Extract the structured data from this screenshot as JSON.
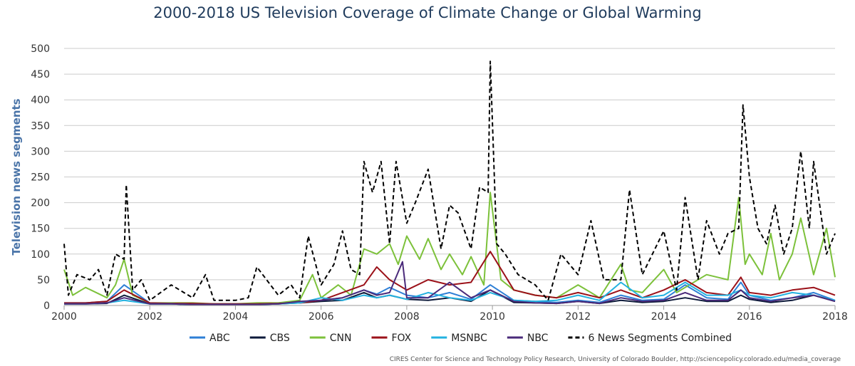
{
  "chart_data": {
    "type": "line",
    "title": "2000-2018 US Television Coverage of Climate Change or Global Warming",
    "ylabel": "Television news segments",
    "xlabel": "",
    "xlim": [
      2000,
      2018
    ],
    "ylim": [
      0,
      500
    ],
    "x_ticks": [
      "2000",
      "2002",
      "2004",
      "2006",
      "2008",
      "2010",
      "2012",
      "2014",
      "2016",
      "2018"
    ],
    "y_ticks": [
      "0",
      "50",
      "100",
      "150",
      "200",
      "250",
      "300",
      "350",
      "400",
      "450",
      "500"
    ],
    "grid": "horizontal",
    "legend_position": "bottom",
    "credit": "CIRES Center for Science and Technology Policy Research, University of Colorado Boulder, http://sciencepolicy.colorado.edu/media_coverage",
    "series": [
      {
        "name": "ABC",
        "color": "#2e7fd6",
        "dashed": false,
        "x": [
          2000.0,
          2000.5,
          2001.0,
          2001.4,
          2002.0,
          2002.5,
          2003.0,
          2003.5,
          2004.0,
          2004.5,
          2005.0,
          2005.5,
          2006.0,
          2006.5,
          2007.0,
          2007.3,
          2007.6,
          2008.0,
          2008.5,
          2009.0,
          2009.5,
          2009.95,
          2010.5,
          2011.0,
          2011.5,
          2012.0,
          2012.5,
          2013.0,
          2013.5,
          2014.0,
          2014.5,
          2015.0,
          2015.5,
          2015.8,
          2016.0,
          2016.5,
          2017.0,
          2017.5,
          2018.0
        ],
        "y": [
          5,
          5,
          8,
          40,
          5,
          4,
          4,
          3,
          3,
          3,
          4,
          6,
          10,
          15,
          30,
          22,
          35,
          20,
          15,
          25,
          12,
          40,
          10,
          8,
          6,
          10,
          6,
          20,
          10,
          12,
          40,
          15,
          12,
          45,
          20,
          10,
          15,
          25,
          10
        ]
      },
      {
        "name": "CBS",
        "color": "#0d1a3a",
        "dashed": false,
        "x": [
          2000.0,
          2000.5,
          2001.0,
          2001.4,
          2002.0,
          2002.5,
          2003.0,
          2003.5,
          2004.0,
          2004.5,
          2005.0,
          2005.5,
          2006.0,
          2006.5,
          2007.0,
          2007.3,
          2007.6,
          2008.0,
          2008.5,
          2009.0,
          2009.5,
          2009.95,
          2010.5,
          2011.0,
          2011.5,
          2012.0,
          2012.5,
          2013.0,
          2013.5,
          2014.0,
          2014.5,
          2015.0,
          2015.5,
          2015.8,
          2016.0,
          2016.5,
          2017.0,
          2017.5,
          2018.0
        ],
        "y": [
          3,
          3,
          4,
          20,
          3,
          3,
          2,
          2,
          2,
          2,
          3,
          5,
          8,
          10,
          25,
          15,
          20,
          12,
          10,
          15,
          8,
          30,
          6,
          5,
          4,
          8,
          4,
          10,
          6,
          8,
          15,
          8,
          8,
          20,
          12,
          6,
          10,
          20,
          8
        ]
      },
      {
        "name": "CNN",
        "color": "#7cc13a",
        "dashed": false,
        "x": [
          2000.0,
          2000.2,
          2000.5,
          2001.0,
          2001.2,
          2001.4,
          2001.6,
          2002.0,
          2002.5,
          2003.0,
          2003.5,
          2004.0,
          2004.5,
          2005.0,
          2005.5,
          2005.8,
          2006.0,
          2006.4,
          2006.7,
          2007.0,
          2007.3,
          2007.6,
          2007.8,
          2008.0,
          2008.3,
          2008.5,
          2008.8,
          2009.0,
          2009.3,
          2009.5,
          2009.8,
          2009.95,
          2010.2,
          2010.5,
          2011.0,
          2011.5,
          2012.0,
          2012.3,
          2012.5,
          2013.0,
          2013.2,
          2013.5,
          2014.0,
          2014.3,
          2014.5,
          2015.0,
          2015.5,
          2015.75,
          2015.9,
          2016.0,
          2016.3,
          2016.5,
          2016.7,
          2017.0,
          2017.2,
          2017.5,
          2017.8,
          2018.0
        ],
        "y": [
          70,
          20,
          35,
          15,
          40,
          90,
          20,
          5,
          5,
          5,
          3,
          3,
          5,
          5,
          10,
          60,
          15,
          40,
          20,
          110,
          100,
          120,
          80,
          135,
          90,
          130,
          70,
          100,
          60,
          95,
          40,
          220,
          50,
          30,
          20,
          15,
          40,
          25,
          15,
          80,
          30,
          25,
          70,
          25,
          35,
          60,
          50,
          210,
          80,
          100,
          60,
          140,
          50,
          100,
          170,
          60,
          150,
          55
        ]
      },
      {
        "name": "FOX",
        "color": "#9b1119",
        "dashed": false,
        "x": [
          2000.0,
          2000.5,
          2001.0,
          2001.4,
          2002.0,
          2002.5,
          2003.0,
          2003.5,
          2004.0,
          2004.5,
          2005.0,
          2005.5,
          2006.0,
          2006.5,
          2007.0,
          2007.3,
          2007.6,
          2008.0,
          2008.5,
          2009.0,
          2009.5,
          2009.95,
          2010.5,
          2011.0,
          2011.5,
          2012.0,
          2012.5,
          2013.0,
          2013.5,
          2014.0,
          2014.5,
          2015.0,
          2015.5,
          2015.8,
          2016.0,
          2016.5,
          2017.0,
          2017.5,
          2018.0
        ],
        "y": [
          5,
          5,
          8,
          30,
          5,
          4,
          4,
          3,
          3,
          3,
          4,
          5,
          10,
          25,
          40,
          75,
          50,
          30,
          50,
          40,
          45,
          105,
          30,
          20,
          15,
          25,
          15,
          30,
          15,
          30,
          50,
          25,
          20,
          55,
          25,
          20,
          30,
          35,
          20
        ]
      },
      {
        "name": "MSNBC",
        "color": "#23b2e0",
        "dashed": false,
        "x": [
          2000.0,
          2000.5,
          2001.0,
          2001.4,
          2002.0,
          2002.5,
          2003.0,
          2003.5,
          2004.0,
          2004.5,
          2005.0,
          2005.5,
          2006.0,
          2006.5,
          2007.0,
          2007.3,
          2007.6,
          2008.0,
          2008.5,
          2009.0,
          2009.5,
          2009.95,
          2010.5,
          2011.0,
          2011.5,
          2012.0,
          2012.5,
          2013.0,
          2013.5,
          2014.0,
          2014.5,
          2015.0,
          2015.5,
          2015.8,
          2016.0,
          2016.5,
          2017.0,
          2017.5,
          2018.0
        ],
        "y": [
          3,
          3,
          5,
          10,
          3,
          3,
          2,
          2,
          2,
          2,
          3,
          5,
          15,
          10,
          20,
          15,
          20,
          12,
          25,
          15,
          10,
          25,
          10,
          8,
          10,
          20,
          10,
          45,
          15,
          20,
          45,
          20,
          20,
          30,
          20,
          15,
          25,
          20,
          10
        ]
      },
      {
        "name": "NBC",
        "color": "#4a2a7a",
        "dashed": false,
        "x": [
          2000.0,
          2000.5,
          2001.0,
          2001.4,
          2002.0,
          2002.5,
          2003.0,
          2003.5,
          2004.0,
          2004.5,
          2005.0,
          2005.5,
          2006.0,
          2006.5,
          2007.0,
          2007.3,
          2007.6,
          2007.9,
          2008.0,
          2008.5,
          2009.0,
          2009.5,
          2009.95,
          2010.5,
          2011.0,
          2011.5,
          2012.0,
          2012.5,
          2013.0,
          2013.5,
          2014.0,
          2014.5,
          2015.0,
          2015.5,
          2015.8,
          2016.0,
          2016.5,
          2017.0,
          2017.5,
          2018.0
        ],
        "y": [
          3,
          3,
          5,
          15,
          3,
          3,
          2,
          2,
          2,
          2,
          3,
          8,
          10,
          15,
          30,
          20,
          25,
          85,
          15,
          15,
          45,
          15,
          30,
          8,
          5,
          4,
          8,
          4,
          15,
          8,
          10,
          25,
          10,
          10,
          30,
          15,
          8,
          15,
          20,
          8
        ]
      },
      {
        "name": "6 News Segments Combined",
        "color": "#000000",
        "dashed": true,
        "x": [
          2000.0,
          2000.1,
          2000.3,
          2000.6,
          2000.8,
          2001.0,
          2001.2,
          2001.4,
          2001.45,
          2001.6,
          2001.8,
          2002.0,
          2002.5,
          2003.0,
          2003.3,
          2003.5,
          2004.0,
          2004.3,
          2004.5,
          2005.0,
          2005.3,
          2005.5,
          2005.7,
          2006.0,
          2006.3,
          2006.5,
          2006.7,
          2006.9,
          2007.0,
          2007.2,
          2007.4,
          2007.6,
          2007.75,
          2008.0,
          2008.2,
          2008.5,
          2008.8,
          2009.0,
          2009.2,
          2009.5,
          2009.7,
          2009.9,
          2009.95,
          2010.1,
          2010.3,
          2010.6,
          2011.0,
          2011.3,
          2011.6,
          2012.0,
          2012.3,
          2012.6,
          2013.0,
          2013.2,
          2013.5,
          2014.0,
          2014.3,
          2014.5,
          2014.8,
          2015.0,
          2015.3,
          2015.5,
          2015.75,
          2015.85,
          2016.0,
          2016.2,
          2016.4,
          2016.6,
          2016.8,
          2017.0,
          2017.2,
          2017.4,
          2017.5,
          2017.8,
          2018.0
        ],
        "y": [
          120,
          20,
          60,
          50,
          70,
          20,
          100,
          90,
          235,
          30,
          50,
          10,
          40,
          15,
          60,
          10,
          10,
          15,
          75,
          20,
          40,
          15,
          135,
          40,
          80,
          145,
          70,
          60,
          280,
          220,
          280,
          120,
          280,
          160,
          200,
          265,
          110,
          195,
          180,
          110,
          230,
          220,
          475,
          120,
          100,
          60,
          40,
          10,
          100,
          60,
          165,
          50,
          50,
          225,
          60,
          145,
          30,
          210,
          50,
          165,
          100,
          140,
          150,
          390,
          250,
          150,
          120,
          195,
          100,
          150,
          300,
          150,
          280,
          100,
          140
        ]
      }
    ]
  }
}
